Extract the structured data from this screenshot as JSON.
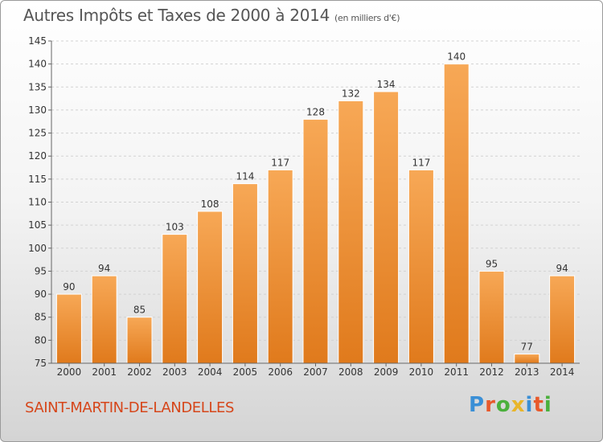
{
  "header": {
    "title": "Autres Impôts et Taxes de 2000 à 2014",
    "unit": "(en milliers d'€)"
  },
  "footer": {
    "commune": "SAINT-MARTIN-DE-LANDELLES",
    "logo": "Proxiti"
  },
  "colors": {
    "bar_top": "#f7a856",
    "bar_bottom": "#e07a1c",
    "title": "#555555",
    "commune": "#d6461a"
  },
  "chart_data": {
    "type": "bar",
    "categories": [
      "2000",
      "2001",
      "2002",
      "2003",
      "2004",
      "2005",
      "2006",
      "2007",
      "2008",
      "2009",
      "2010",
      "2011",
      "2012",
      "2013",
      "2014"
    ],
    "values": [
      90,
      94,
      85,
      103,
      108,
      114,
      117,
      128,
      132,
      134,
      117,
      140,
      95,
      77,
      94
    ],
    "title": "Autres Impôts et Taxes de 2000 à 2014",
    "ylim": [
      75,
      145
    ],
    "yticks": [
      75,
      80,
      85,
      90,
      95,
      100,
      105,
      110,
      115,
      120,
      125,
      130,
      135,
      140,
      145
    ],
    "grid": true,
    "data_labels": true
  }
}
